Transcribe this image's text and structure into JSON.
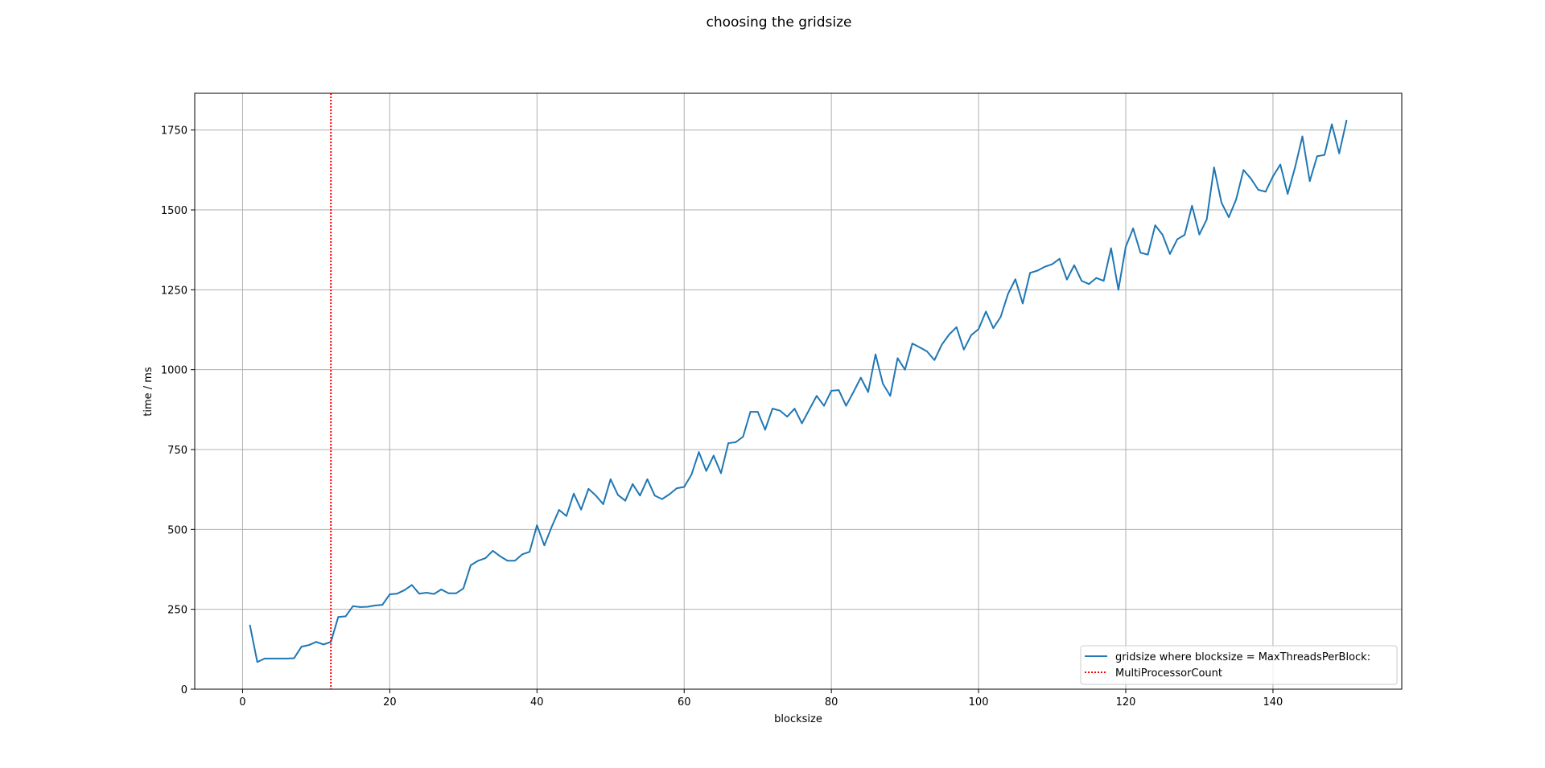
{
  "chart_data": {
    "type": "line",
    "title": "choosing the gridsize",
    "xlabel": "blocksize",
    "ylabel": "time / ms",
    "xlim": [
      -6.5,
      157.5
    ],
    "ylim": [
      0,
      1865
    ],
    "xticks": [
      0,
      20,
      40,
      60,
      80,
      100,
      120,
      140
    ],
    "yticks": [
      0,
      250,
      500,
      750,
      1000,
      1250,
      1500,
      1750
    ],
    "grid": true,
    "legend_position": "lower right",
    "series": [
      {
        "name": "gridsize where blocksize = MaxThreadsPerBlock:",
        "color": "#1f77b4",
        "style": "solid",
        "x": [
          1,
          2,
          3,
          4,
          5,
          6,
          7,
          8,
          9,
          10,
          11,
          12,
          13,
          14,
          15,
          16,
          17,
          18,
          19,
          20,
          21,
          22,
          23,
          24,
          25,
          26,
          27,
          28,
          29,
          30,
          31,
          32,
          33,
          34,
          35,
          36,
          37,
          38,
          39,
          40,
          41,
          42,
          43,
          44,
          45,
          46,
          47,
          48,
          49,
          50,
          51,
          52,
          53,
          54,
          55,
          56,
          57,
          58,
          59,
          60,
          61,
          62,
          63,
          64,
          65,
          66,
          67,
          68,
          69,
          70,
          71,
          72,
          73,
          74,
          75,
          76,
          77,
          78,
          79,
          80,
          81,
          82,
          83,
          84,
          85,
          86,
          87,
          88,
          89,
          90,
          91,
          92,
          93,
          94,
          95,
          96,
          97,
          98,
          99,
          100,
          101,
          102,
          103,
          104,
          105,
          106,
          107,
          108,
          109,
          110,
          111,
          112,
          113,
          114,
          115,
          116,
          117,
          118,
          119,
          120,
          121,
          122,
          123,
          124,
          125,
          126,
          127,
          128,
          129,
          130,
          131,
          132,
          133,
          134,
          135,
          136,
          137,
          138,
          139,
          140,
          141,
          142,
          143,
          144,
          145,
          146,
          147,
          148,
          149,
          150
        ],
        "y": [
          200,
          85,
          96,
          96,
          96,
          96,
          97,
          133,
          138,
          148,
          140,
          148,
          226,
          228,
          260,
          257,
          258,
          262,
          264,
          297,
          299,
          310,
          326,
          299,
          302,
          298,
          312,
          300,
          300,
          315,
          388,
          402,
          410,
          433,
          416,
          402,
          402,
          422,
          430,
          513,
          450,
          508,
          561,
          542,
          612,
          562,
          627,
          606,
          579,
          657,
          608,
          590,
          642,
          606,
          657,
          606,
          595,
          610,
          629,
          633,
          672,
          742,
          683,
          731,
          676,
          770,
          773,
          790,
          868,
          868,
          812,
          878,
          872,
          853,
          878,
          832,
          875,
          918,
          887,
          934,
          936,
          887,
          930,
          975,
          930,
          1048,
          956,
          918,
          1036,
          1000,
          1082,
          1070,
          1057,
          1030,
          1078,
          1110,
          1133,
          1063,
          1108,
          1127,
          1182,
          1130,
          1165,
          1237,
          1283,
          1207,
          1303,
          1310,
          1322,
          1330,
          1347,
          1282,
          1327,
          1278,
          1268,
          1287,
          1278,
          1380,
          1250,
          1385,
          1442,
          1366,
          1360,
          1452,
          1422,
          1362,
          1408,
          1422,
          1513,
          1423,
          1470,
          1633,
          1523,
          1477,
          1533,
          1625,
          1598,
          1563,
          1557,
          1605,
          1642,
          1550,
          1633,
          1730,
          1590,
          1668,
          1672,
          1768,
          1677,
          1780
        ]
      },
      {
        "name": "MultiProcessorCount",
        "color": "#ff0000",
        "style": "dotted",
        "vline_x": 12
      }
    ]
  }
}
